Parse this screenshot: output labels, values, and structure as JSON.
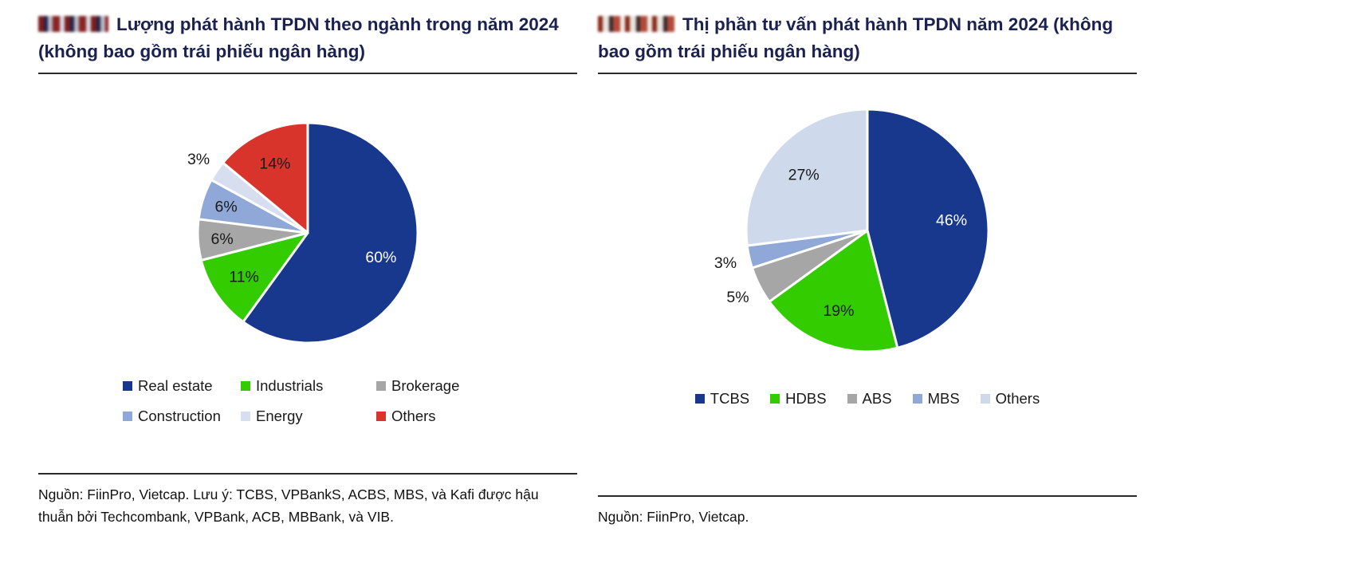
{
  "page": {
    "background": "#ffffff",
    "text_color": "#1a1a1a",
    "title_color": "#1b2150"
  },
  "icons": {
    "left_logo": "pixelated-redacted-logo",
    "right_logo": "pixelated-redacted-logo"
  },
  "left_panel": {
    "title": "Lượng phát hành TPDN theo ngành trong năm 2024 (không bao gồm trái phiếu ngân hàng)",
    "source": "Nguồn: FiinPro, Vietcap. Lưu ý: TCBS, VPBankS, ACBS, MBS, và Kafi được hậu thuẫn bởi Techcombank, VPBank, ACB, MBBank, và VIB."
  },
  "right_panel": {
    "title": "Thị phần tư vấn phát hành TPDN năm 2024 (không bao gồm trái phiếu ngân hàng)",
    "source": "Nguồn: FiinPro, Vietcap."
  },
  "chart_data": [
    {
      "type": "pie",
      "title": "Lượng phát hành TPDN theo ngành trong năm 2024 (không bao gồm trái phiếu ngân hàng)",
      "unit": "%",
      "start_angle_deg": 0,
      "direction": "clockwise",
      "legend": {
        "position": "bottom",
        "columns": 3
      },
      "slices": [
        {
          "label": "Real estate",
          "value": 60,
          "color": "#17388C",
          "text_color": "#ffffff",
          "label_pos": "inside"
        },
        {
          "label": "Industrials",
          "value": 11,
          "color": "#33CC00",
          "text_color": "#1a1a1a",
          "label_pos": "inside"
        },
        {
          "label": "Brokerage",
          "value": 6,
          "color": "#A6A6A6",
          "text_color": "#1a1a1a",
          "label_pos": "inside"
        },
        {
          "label": "Construction",
          "value": 6,
          "color": "#8FA8D8",
          "text_color": "#1a1a1a",
          "label_pos": "inside"
        },
        {
          "label": "Energy",
          "value": 3,
          "color": "#D6DEF0",
          "text_color": "#1a1a1a",
          "label_pos": "outside"
        },
        {
          "label": "Others",
          "value": 14,
          "color": "#D9342B",
          "text_color": "#1a1a1a",
          "label_pos": "inside"
        }
      ]
    },
    {
      "type": "pie",
      "title": "Thị phần tư vấn phát hành TPDN năm 2024 (không bao gồm trái phiếu ngân hàng)",
      "unit": "%",
      "start_angle_deg": 0,
      "direction": "clockwise",
      "legend": {
        "position": "bottom",
        "columns": 5
      },
      "slices": [
        {
          "label": "TCBS",
          "value": 46,
          "color": "#17388C",
          "text_color": "#ffffff",
          "label_pos": "inside"
        },
        {
          "label": "HDBS",
          "value": 19,
          "color": "#33CC00",
          "text_color": "#1a1a1a",
          "label_pos": "inside"
        },
        {
          "label": "ABS",
          "value": 5,
          "color": "#A6A6A6",
          "text_color": "#1a1a1a",
          "label_pos": "outside"
        },
        {
          "label": "MBS",
          "value": 3,
          "color": "#8FA8D8",
          "text_color": "#1a1a1a",
          "label_pos": "outside"
        },
        {
          "label": "Others",
          "value": 27,
          "color": "#CFD9EC",
          "text_color": "#1a1a1a",
          "label_pos": "inside"
        }
      ]
    }
  ]
}
